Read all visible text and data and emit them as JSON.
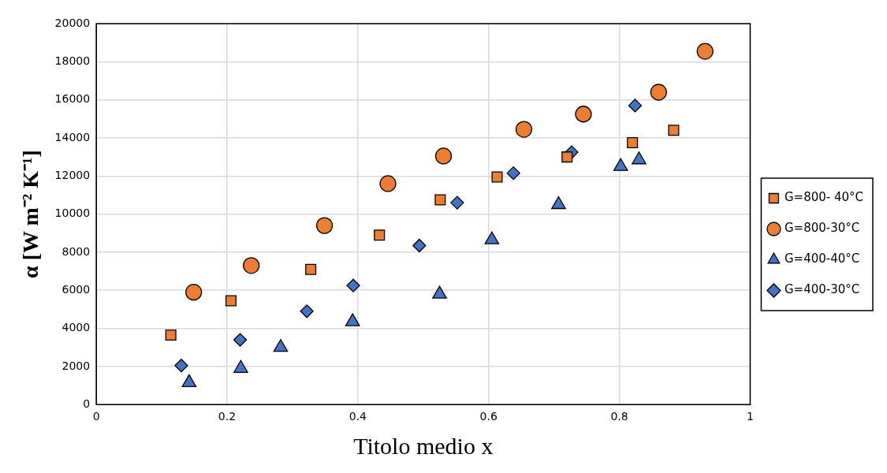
{
  "chart_data": {
    "type": "scatter",
    "xlabel": "Titolo medio x",
    "ylabel": "α [W m⁻² K⁻¹]",
    "xlim": [
      0,
      1
    ],
    "xticks": [
      0,
      0.2,
      0.4,
      0.6,
      0.8,
      1
    ],
    "ylim": [
      0,
      20000
    ],
    "yticks": [
      0,
      2000,
      4000,
      6000,
      8000,
      10000,
      12000,
      14000,
      16000,
      18000,
      20000
    ],
    "grid": true,
    "legend": "right",
    "series": [
      {
        "name": "G=800- 40°C",
        "color": "#ed7d31",
        "marker": "square",
        "x": [
          0.114,
          0.206,
          0.328,
          0.433,
          0.526,
          0.613,
          0.72,
          0.82,
          0.883
        ],
        "values": [
          3650,
          5450,
          7100,
          8900,
          10750,
          11950,
          13000,
          13750,
          14400
        ]
      },
      {
        "name": "G=800-30°C",
        "color": "#ed7d31",
        "marker": "circle",
        "x": [
          0.149,
          0.237,
          0.349,
          0.446,
          0.531,
          0.654,
          0.745,
          0.86,
          0.931
        ],
        "values": [
          5900,
          7300,
          9400,
          11600,
          13050,
          14450,
          15250,
          16400,
          18550
        ]
      },
      {
        "name": "G=400-40°C",
        "color": "#4472c4",
        "marker": "triangle",
        "x": [
          0.142,
          0.221,
          0.282,
          0.392,
          0.525,
          0.605,
          0.707,
          0.802,
          0.83
        ],
        "values": [
          1150,
          1900,
          3000,
          4350,
          5800,
          8650,
          10500,
          12500,
          12850
        ]
      },
      {
        "name": "G=400-30°C",
        "color": "#4472c4",
        "marker": "diamond",
        "x": [
          0.13,
          0.22,
          0.322,
          0.393,
          0.494,
          0.552,
          0.638,
          0.727,
          0.824
        ],
        "values": [
          2050,
          3400,
          4900,
          6250,
          8350,
          10600,
          12150,
          13250,
          15700
        ]
      }
    ]
  }
}
